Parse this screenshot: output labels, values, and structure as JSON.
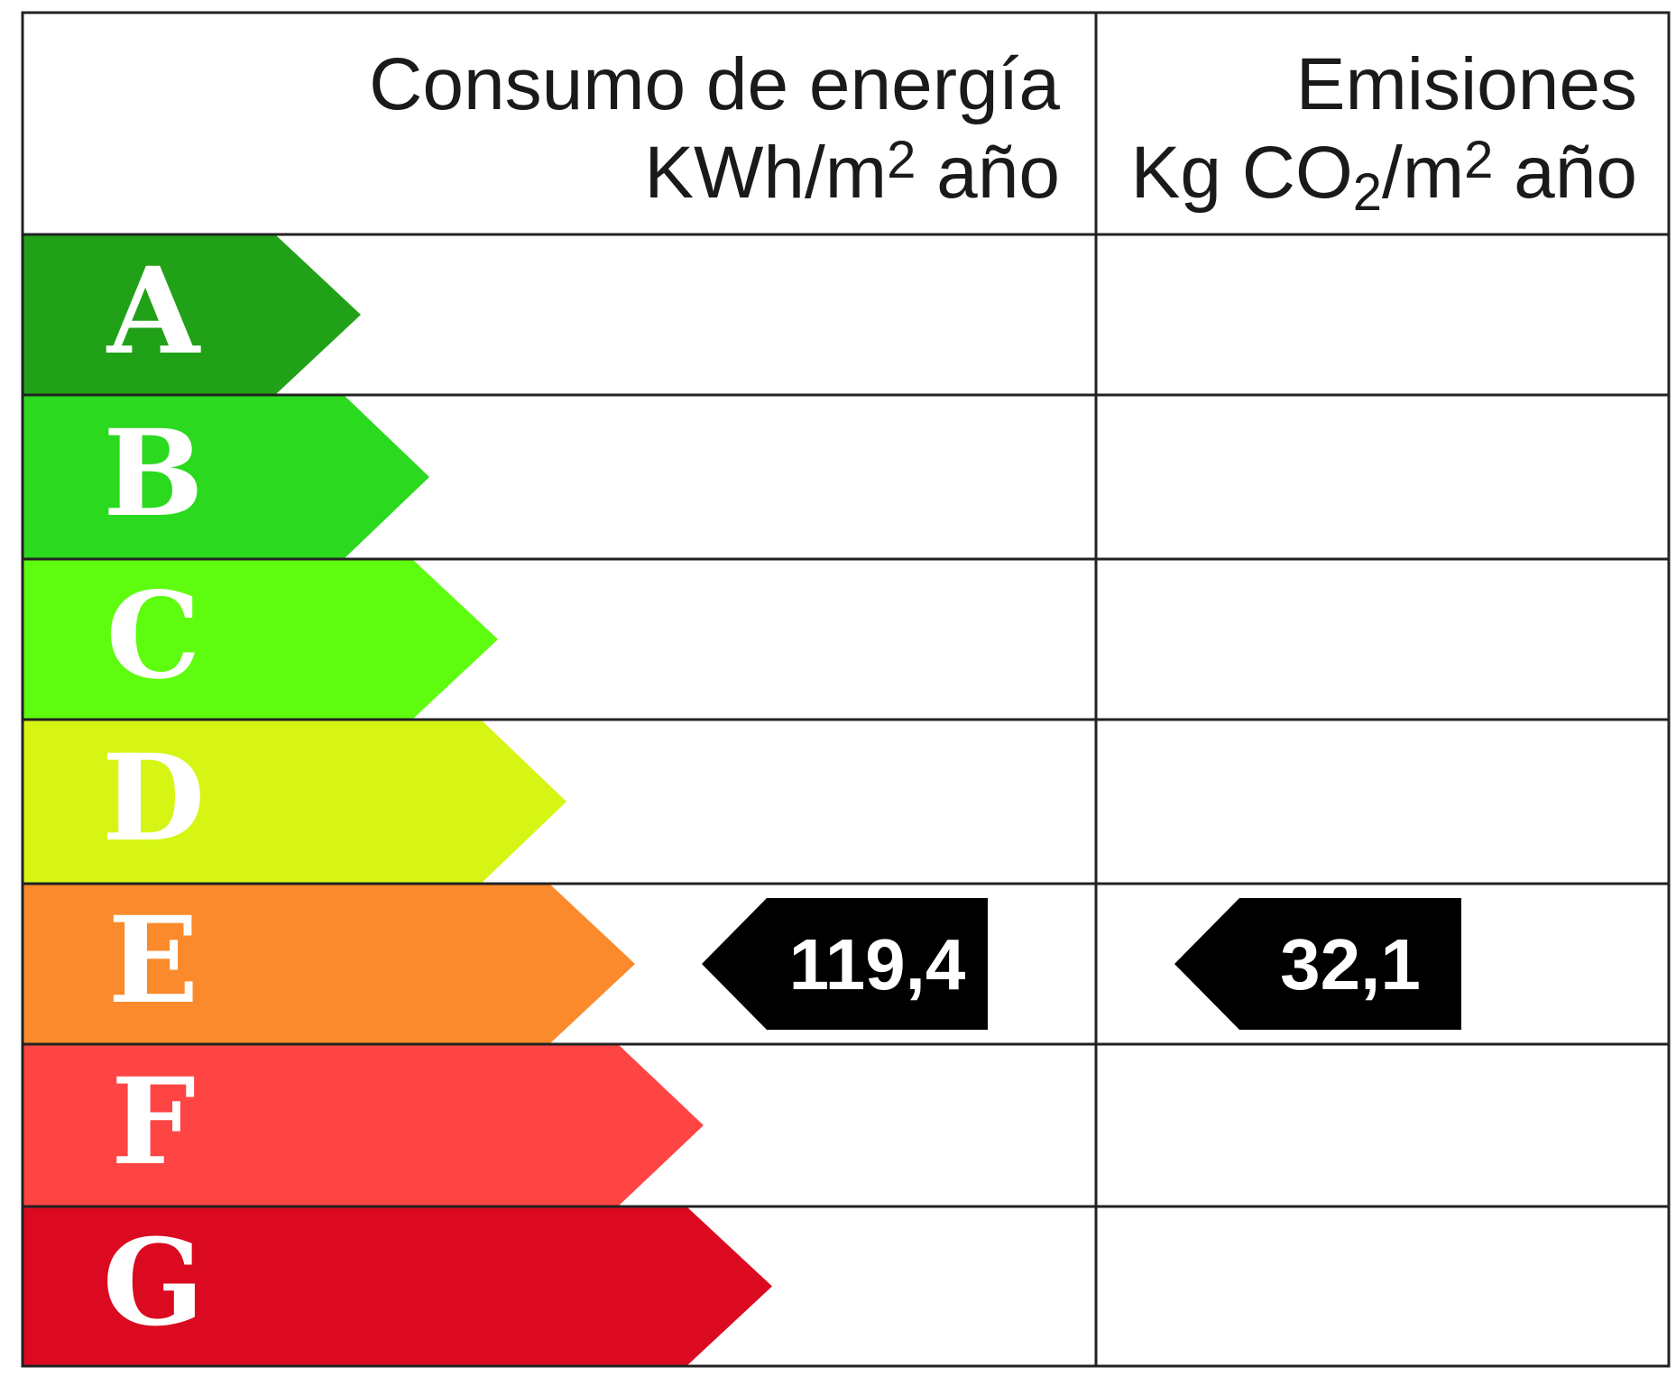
{
  "header": {
    "energy": {
      "title": "Consumo de energía",
      "unit_prefix": "KWh/m",
      "unit_sup": "2",
      "unit_suffix": " año"
    },
    "emissions": {
      "title": "Emisiones",
      "unit_prefix": "Kg CO",
      "unit_sub": "2",
      "unit_mid": "/m",
      "unit_sup": "2",
      "unit_suffix": " año"
    }
  },
  "classes": [
    {
      "letter": "A",
      "color": "#21a117"
    },
    {
      "letter": "B",
      "color": "#2bd91f"
    },
    {
      "letter": "C",
      "color": "#5efc0f"
    },
    {
      "letter": "D",
      "color": "#d6f515"
    },
    {
      "letter": "E",
      "color": "#fa8a2b"
    },
    {
      "letter": "F",
      "color": "#ff4444"
    },
    {
      "letter": "G",
      "color": "#db0a20"
    }
  ],
  "rating": {
    "energy": {
      "class": "E",
      "value": "119,4"
    },
    "emissions": {
      "class": "E",
      "value": "32,1"
    }
  },
  "colors": {
    "border": "#222222",
    "tag": "#000000",
    "letter_text": "#ffffff"
  }
}
